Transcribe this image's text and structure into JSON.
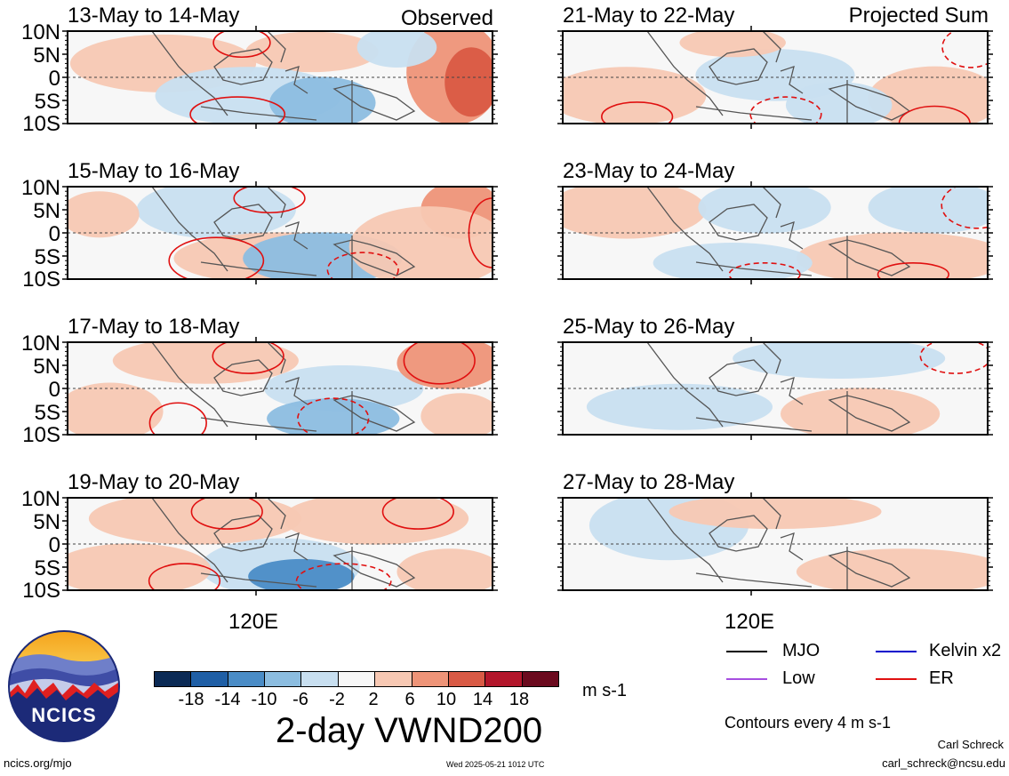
{
  "left_column_tag": "Observed",
  "right_column_tag": "Projected Sum",
  "panels_left": [
    {
      "title": "13-May to 14-May"
    },
    {
      "title": "15-May to 16-May"
    },
    {
      "title": "17-May to 18-May"
    },
    {
      "title": "19-May to 20-May"
    }
  ],
  "panels_right": [
    {
      "title": "21-May to 22-May"
    },
    {
      "title": "23-May to 24-May"
    },
    {
      "title": "25-May to 26-May"
    },
    {
      "title": "27-May to 28-May"
    }
  ],
  "lat_labels": [
    "10N",
    "5N",
    "0",
    "5S",
    "10S"
  ],
  "lon_label": "120E",
  "colorbar": {
    "unit": "m s-1",
    "ticks": [
      "-18",
      "-14",
      "-10",
      "-6",
      "-2",
      "2",
      "6",
      "10",
      "14",
      "18"
    ],
    "colors": [
      "#0b2a55",
      "#1f5fa6",
      "#4a8cc6",
      "#8cbde0",
      "#c8dff0",
      "#f7f7f7",
      "#f7c8b3",
      "#ee9478",
      "#d95a45",
      "#b3162b",
      "#6b0a1e"
    ]
  },
  "main_title": "2-day VWND200",
  "legend": {
    "items": [
      {
        "label": "MJO",
        "color": "#000000",
        "style": "solid"
      },
      {
        "label": "Kelvin x2",
        "color": "#0000cc",
        "style": "solid"
      },
      {
        "label": "Low",
        "color": "#a64ee0",
        "style": "solid"
      },
      {
        "label": "ER",
        "color": "#e01010",
        "style": "solid"
      }
    ],
    "contour_note": "Contours every 4 m s-1"
  },
  "logo_text": "NCICS",
  "footer": {
    "website": "ncics.org/mjo",
    "timestamp": "Wed 2025-05-21 1012 UTC",
    "author": "Carl Schreck",
    "email": "carl_schreck@ncsu.edu"
  }
}
